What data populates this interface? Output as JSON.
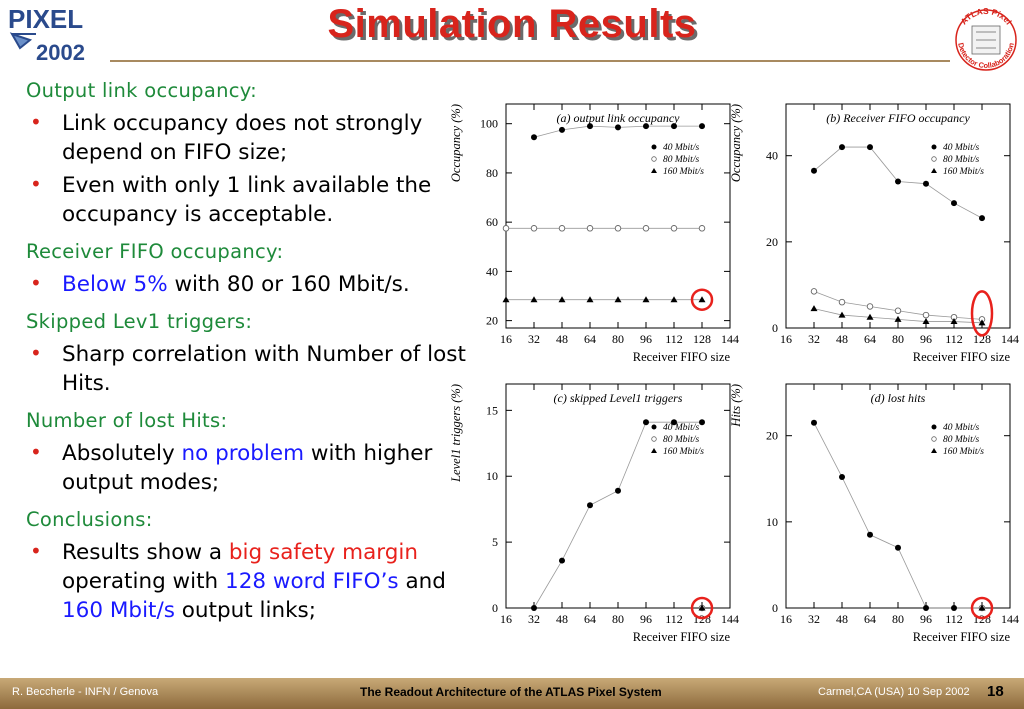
{
  "header": {
    "title": "Simulation Results",
    "logo_left": {
      "line1": "PIXEL",
      "line2": "2002"
    },
    "logo_right": {
      "top": "ATLAS Pixel",
      "bottom": "Detector Collaboration"
    }
  },
  "content": {
    "h1": "Output link occupancy:",
    "b1a": "Link occupancy does not strongly depend on FIFO size;",
    "b1b": "Even with only 1 link available the occupancy is acceptable.",
    "h2": "Receiver FIFO occupancy:",
    "b2_blue": "Below 5%",
    "b2_rest": " with 80 or 160 Mbit/s.",
    "h3": "Skipped Lev1 triggers:",
    "b3": "Sharp correlation with Number of lost Hits.",
    "h4": "Number of lost Hits:",
    "b4_pre": "Absolutely ",
    "b4_blue": "no problem",
    "b4_post": " with higher output modes;",
    "h5": "Conclusions:",
    "b5_pre": "Results show a ",
    "b5_red": "big safety margin",
    "b5_mid": " operating with ",
    "b5_blue1": "128 word FIFO’s",
    "b5_and": " and ",
    "b5_blue2": "160 Mbit/s",
    "b5_post": " output links;",
    "bullet": "•"
  },
  "chart_data": [
    {
      "type": "scatter",
      "title": "(a) output link occupancy",
      "xlabel": "Receiver FIFO size",
      "ylabel": "Occupancy (%)",
      "xlim": [
        16,
        144
      ],
      "ylim": [
        17,
        108
      ],
      "xticks": [
        16,
        32,
        48,
        64,
        80,
        96,
        112,
        128,
        144
      ],
      "yticks": [
        20,
        40,
        60,
        80,
        100
      ],
      "legend_placement": "top-right",
      "highlight": {
        "x": 128,
        "y": 28.5
      },
      "series": [
        {
          "name": "40 Mbit/s",
          "marker": "filled-circle",
          "x": [
            32,
            48,
            64,
            80,
            96,
            112,
            128
          ],
          "y": [
            94.5,
            97.5,
            99,
            98.5,
            99,
            99,
            99
          ]
        },
        {
          "name": "80 Mbit/s",
          "marker": "open-circle",
          "x": [
            16,
            32,
            48,
            64,
            80,
            96,
            112,
            128
          ],
          "y": [
            57.5,
            57.5,
            57.5,
            57.5,
            57.5,
            57.5,
            57.5,
            57.5
          ]
        },
        {
          "name": "160 Mbit/s",
          "marker": "filled-triangle",
          "x": [
            16,
            32,
            48,
            64,
            80,
            96,
            112,
            128
          ],
          "y": [
            28.5,
            28.5,
            28.5,
            28.5,
            28.5,
            28.5,
            28.5,
            28.5
          ]
        }
      ]
    },
    {
      "type": "scatter",
      "title": "(b) Receiver FIFO occupancy",
      "xlabel": "Receiver FIFO size",
      "ylabel": "Occupancy (%)",
      "xlim": [
        16,
        144
      ],
      "ylim": [
        0,
        52
      ],
      "xticks": [
        16,
        32,
        48,
        64,
        80,
        96,
        112,
        128,
        144
      ],
      "yticks": [
        0,
        20,
        40
      ],
      "legend_placement": "top-right",
      "highlight": {
        "x": 128,
        "y": 2
      },
      "series": [
        {
          "name": "40 Mbit/s",
          "marker": "filled-circle",
          "x": [
            32,
            48,
            64,
            80,
            96,
            112,
            128
          ],
          "y": [
            36.5,
            42,
            42,
            34,
            33.5,
            29,
            25.5
          ]
        },
        {
          "name": "80 Mbit/s",
          "marker": "open-circle",
          "x": [
            32,
            48,
            64,
            80,
            96,
            112,
            128
          ],
          "y": [
            8.5,
            6,
            5,
            4,
            3,
            2.5,
            2
          ]
        },
        {
          "name": "160 Mbit/s",
          "marker": "filled-triangle",
          "x": [
            32,
            48,
            64,
            80,
            96,
            112,
            128
          ],
          "y": [
            4.5,
            3,
            2.5,
            2,
            1.5,
            1.5,
            1.2
          ]
        }
      ]
    },
    {
      "type": "scatter",
      "title": "(c) skipped Level1 triggers",
      "xlabel": "Receiver FIFO size",
      "ylabel": "Level1 triggers (%)",
      "xlim": [
        16,
        144
      ],
      "ylim": [
        0,
        17
      ],
      "xticks": [
        16,
        32,
        48,
        64,
        80,
        96,
        112,
        128,
        144
      ],
      "yticks": [
        0,
        5,
        10,
        15
      ],
      "legend_placement": "top-right",
      "highlight": {
        "x": 128,
        "y": 0
      },
      "series": [
        {
          "name": "40 Mbit/s",
          "marker": "filled-circle",
          "x": [
            32,
            48,
            64,
            80,
            96,
            112,
            128
          ],
          "y": [
            0,
            3.6,
            7.8,
            8.9,
            14.1,
            14.1,
            14.1
          ]
        },
        {
          "name": "80 Mbit/s",
          "marker": "open-circle",
          "x": [
            128
          ],
          "y": [
            0
          ]
        },
        {
          "name": "160 Mbit/s",
          "marker": "filled-triangle",
          "x": [
            128
          ],
          "y": [
            0
          ]
        }
      ]
    },
    {
      "type": "scatter",
      "title": "(d) lost hits",
      "xlabel": "Receiver FIFO size",
      "ylabel": "Hits (%)",
      "xlim": [
        16,
        144
      ],
      "ylim": [
        0,
        26
      ],
      "xticks": [
        16,
        32,
        48,
        64,
        80,
        96,
        112,
        128,
        144
      ],
      "yticks": [
        0,
        10,
        20
      ],
      "legend_placement": "top-right",
      "highlight": {
        "x": 128,
        "y": 0
      },
      "series": [
        {
          "name": "40 Mbit/s",
          "marker": "filled-circle",
          "x": [
            32,
            48,
            64,
            80,
            96,
            112,
            128
          ],
          "y": [
            21.5,
            15.2,
            8.5,
            7,
            0,
            0,
            0
          ]
        },
        {
          "name": "80 Mbit/s",
          "marker": "open-circle",
          "x": [
            128
          ],
          "y": [
            0
          ]
        },
        {
          "name": "160 Mbit/s",
          "marker": "filled-triangle",
          "x": [
            128
          ],
          "y": [
            0
          ]
        }
      ]
    }
  ],
  "footer": {
    "left": "R. Beccherle - INFN / Genova",
    "center": "The Readout Architecture of the ATLAS Pixel System",
    "right": "Carmel,CA (USA) 10 Sep 2002",
    "page": "18"
  },
  "colors": {
    "title": "#d8241c",
    "heading": "#1e8a3a",
    "emphasis_blue": "#1a1aff",
    "emphasis_red": "#e8211c",
    "highlight_circle": "#e8211c",
    "footer_bar": "#a88a60"
  }
}
